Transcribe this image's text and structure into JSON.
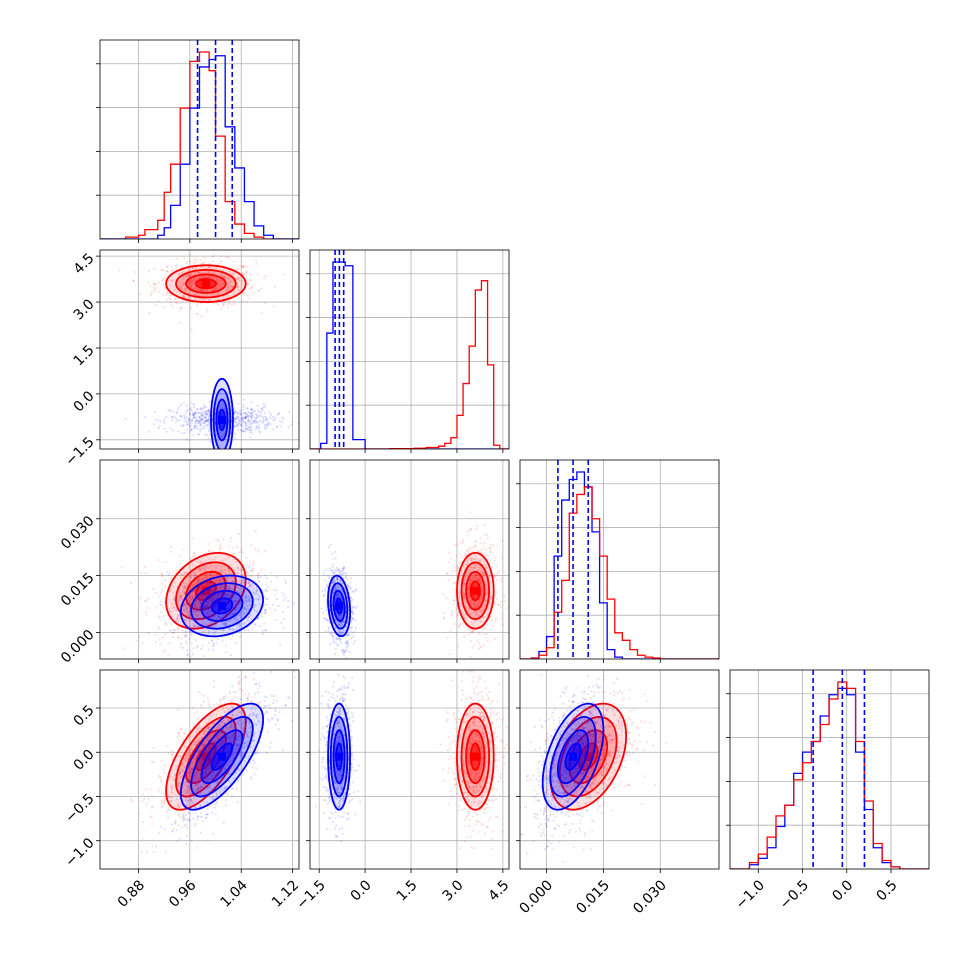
{
  "chart_data": {
    "type": "corner",
    "title": "",
    "parameters": [
      {
        "range": [
          0.82,
          1.13
        ],
        "ticks": [
          "0.88",
          "0.96",
          "1.04",
          "1.12"
        ],
        "tick_values": [
          0.88,
          0.96,
          1.04,
          1.12
        ]
      },
      {
        "range": [
          -1.8,
          4.7
        ],
        "ticks": [
          "−1.5",
          "0.0",
          "1.5",
          "3.0",
          "4.5"
        ],
        "tick_values": [
          -1.5,
          0.0,
          1.5,
          3.0,
          4.5
        ]
      },
      {
        "range": [
          -0.007,
          0.0455
        ],
        "ticks": [
          "0.000",
          "0.015",
          "0.030"
        ],
        "tick_values": [
          0.0,
          0.015,
          0.03
        ]
      },
      {
        "range": [
          -1.32,
          0.93
        ],
        "ticks": [
          "−1.0",
          "−0.5",
          "0.0",
          "0.5"
        ],
        "tick_values": [
          -1.0,
          -0.5,
          0.0,
          0.5
        ]
      }
    ],
    "colors": {
      "red": "#ff0000",
      "blue": "#0000ff"
    },
    "quantiles": [
      [
        0.972,
        1.0,
        1.026
      ],
      [
        -0.98,
        -0.84,
        -0.7
      ],
      [
        0.003,
        0.007,
        0.011
      ],
      [
        -0.38,
        -0.05,
        0.2
      ]
    ],
    "histograms": [
      {
        "bin_edges": [
          0.82,
          0.85,
          0.86,
          0.88,
          0.89,
          0.91,
          0.92,
          0.93,
          0.945,
          0.96,
          0.975,
          0.99,
          1.0,
          1.015,
          1.03,
          1.045,
          1.06,
          1.075,
          1.09,
          1.13
        ],
        "series": [
          {
            "color": "red",
            "counts": [
              0,
              0,
              0.01,
              0.02,
              0.05,
              0.1,
              0.25,
              0.4,
              0.7,
              0.95,
              1.0,
              0.9,
              0.55,
              0.2,
              0.08,
              0.03,
              0.01,
              0,
              0
            ]
          },
          {
            "color": "blue",
            "counts": [
              0,
              0,
              0,
              0,
              0,
              0.02,
              0.06,
              0.18,
              0.4,
              0.7,
              0.92,
              0.96,
              0.98,
              0.6,
              0.38,
              0.2,
              0.07,
              0.02,
              0
            ]
          }
        ]
      },
      {
        "bin_edges": [
          -1.8,
          -1.45,
          -1.25,
          -1.05,
          -0.85,
          -0.65,
          -0.4,
          0.0,
          0.8,
          1.6,
          2.0,
          2.4,
          2.6,
          2.8,
          3.0,
          3.2,
          3.4,
          3.6,
          3.8,
          4.0,
          4.2,
          4.4,
          4.7
        ],
        "series": [
          {
            "color": "blue",
            "counts": [
              0,
              0.03,
              0.62,
              1.0,
              1.0,
              0.98,
              0.05,
              0,
              0,
              0,
              0,
              0,
              0,
              0,
              0,
              0,
              0,
              0,
              0,
              0,
              0,
              0
            ]
          },
          {
            "color": "red",
            "counts": [
              0,
              0,
              0,
              0,
              0,
              0,
              0,
              0,
              0.002,
              0.004,
              0.008,
              0.015,
              0.03,
              0.06,
              0.18,
              0.35,
              0.55,
              0.85,
              0.9,
              0.45,
              0.02,
              0
            ]
          }
        ]
      },
      {
        "bin_edges": [
          -0.007,
          -0.004,
          -0.002,
          0.0,
          0.002,
          0.004,
          0.006,
          0.008,
          0.01,
          0.012,
          0.014,
          0.016,
          0.018,
          0.02,
          0.022,
          0.024,
          0.026,
          0.028,
          0.03,
          0.032,
          0.0455
        ],
        "series": [
          {
            "color": "blue",
            "counts": [
              0,
              0.005,
              0.04,
              0.12,
              0.55,
              0.85,
              0.96,
              1.0,
              0.92,
              0.68,
              0.3,
              0.05,
              0.01,
              0,
              0,
              0,
              0,
              0,
              0,
              0
            ]
          },
          {
            "color": "red",
            "counts": [
              0,
              0.004,
              0.02,
              0.06,
              0.25,
              0.42,
              0.78,
              0.88,
              0.92,
              0.75,
              0.55,
              0.32,
              0.14,
              0.1,
              0.05,
              0.02,
              0.01,
              0.005,
              0,
              0
            ]
          }
        ]
      },
      {
        "bin_edges": [
          -1.32,
          -1.1,
          -1.0,
          -0.9,
          -0.8,
          -0.7,
          -0.6,
          -0.5,
          -0.4,
          -0.3,
          -0.2,
          -0.1,
          0.0,
          0.1,
          0.2,
          0.3,
          0.4,
          0.5,
          0.6,
          0.93
        ],
        "series": [
          {
            "color": "blue",
            "counts": [
              0,
              0.02,
              0.05,
              0.1,
              0.2,
              0.3,
              0.45,
              0.55,
              0.6,
              0.72,
              0.82,
              0.85,
              0.82,
              0.55,
              0.28,
              0.1,
              0.03,
              0.01,
              0
            ]
          },
          {
            "color": "red",
            "counts": [
              0,
              0.03,
              0.07,
              0.15,
              0.25,
              0.3,
              0.42,
              0.5,
              0.6,
              0.68,
              0.8,
              0.88,
              0.85,
              0.6,
              0.32,
              0.12,
              0.04,
              0.01,
              0
            ]
          }
        ]
      }
    ],
    "distributions": [
      {
        "color": "red",
        "mean": [
          0.985,
          3.6,
          0.011,
          -0.05
        ],
        "sd": [
          0.031,
          0.3,
          0.005,
          0.3
        ],
        "corr": [
          [
            1,
            0,
            0.3,
            0.65
          ],
          [
            0,
            1,
            0,
            0
          ],
          [
            0.3,
            0,
            1,
            0.4
          ],
          [
            0.65,
            0,
            0.4,
            1
          ]
        ]
      },
      {
        "color": "blue",
        "mean": [
          1.01,
          -0.85,
          0.007,
          -0.05
        ],
        "sd": [
          0.032,
          0.18,
          0.004,
          0.3
        ],
        "corr": [
          [
            1,
            0,
            0.2,
            0.7
          ],
          [
            0,
            1,
            -0.2,
            0
          ],
          [
            0.2,
            -0.2,
            1,
            0.5
          ],
          [
            0.7,
            0,
            0.5,
            1
          ]
        ]
      }
    ],
    "contour_levels_sigma": [
      0.5,
      1.0,
      1.5,
      2.0
    ],
    "grid": true,
    "legend": "none"
  }
}
